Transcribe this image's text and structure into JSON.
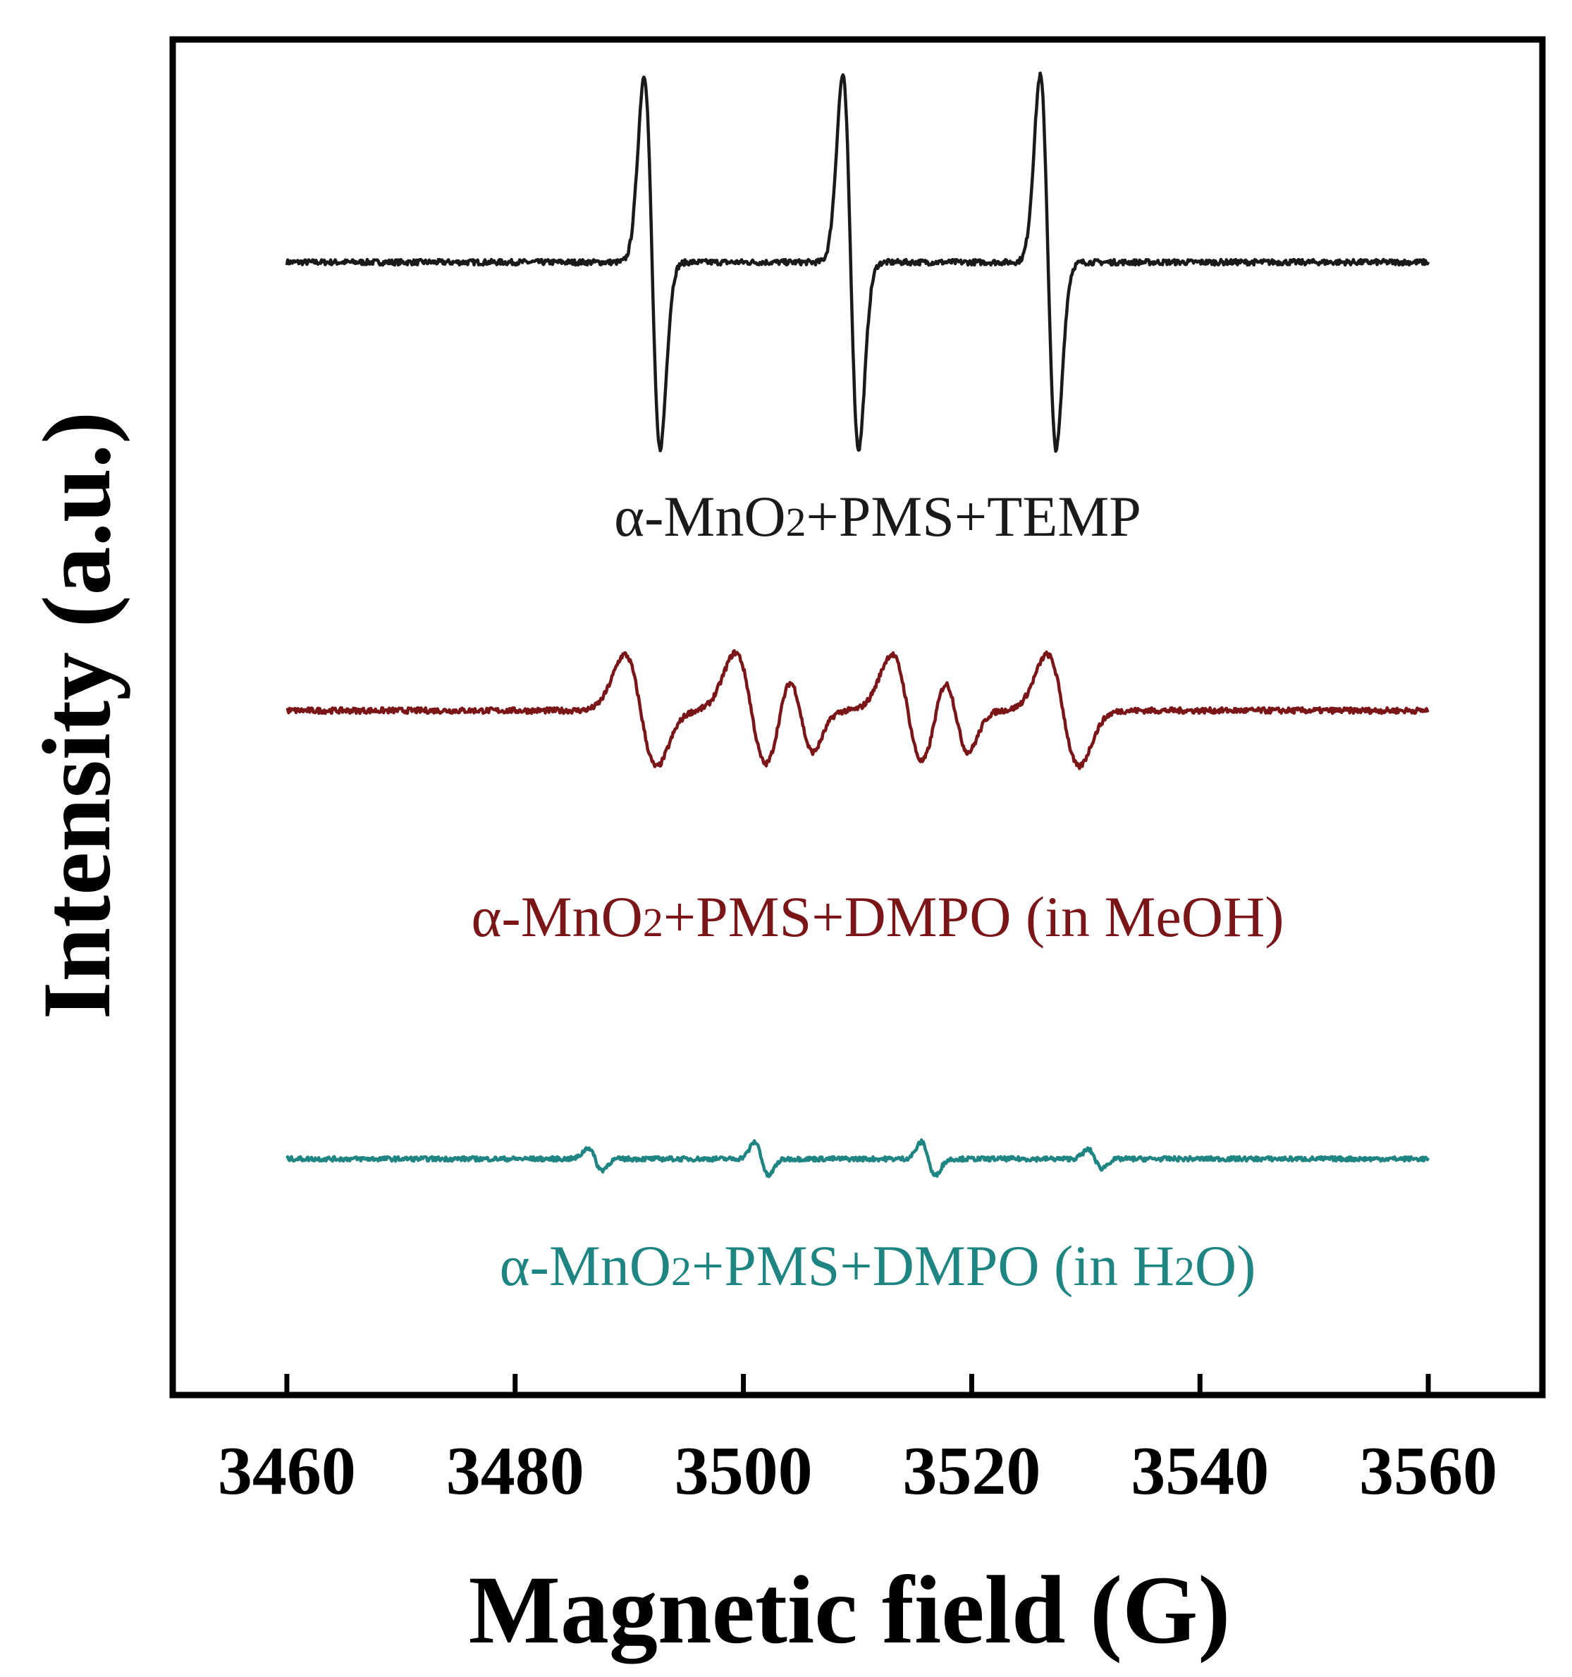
{
  "chart_data": {
    "type": "line",
    "title": "",
    "xlabel": "Magnetic field (G)",
    "ylabel": "Intensity (a.u.)",
    "xlim": [
      3450,
      3570
    ],
    "xticks": [
      3460,
      3480,
      3500,
      3520,
      3540,
      3560
    ],
    "grid": false,
    "y_ticks_shown": false,
    "series": [
      {
        "label_parts": [
          {
            "text": "α-MnO",
            "sub": false
          },
          {
            "text": "2",
            "sub": true
          },
          {
            "text": "+PMS+TEMP",
            "sub": false
          }
        ],
        "color": "#1a1a1a",
        "baseline": 0,
        "noise": 0.015,
        "x_range": [
          3460,
          3560
        ],
        "peaks": [
          {
            "center": 3492,
            "amplitude": 1.0,
            "width": 0.7
          },
          {
            "center": 3509.4,
            "amplitude": 1.0,
            "width": 0.7
          },
          {
            "center": 3526.7,
            "amplitude": 1.0,
            "width": 0.7
          }
        ]
      },
      {
        "label_parts": [
          {
            "text": "α-MnO",
            "sub": false
          },
          {
            "text": "2",
            "sub": true
          },
          {
            "text": "+PMS+DMPO (in MeOH)",
            "sub": false
          }
        ],
        "color": "#7a1518",
        "baseline": -2.4,
        "noise": 0.015,
        "x_range": [
          3460,
          3560
        ],
        "peaks": [
          {
            "center": 3491.0,
            "amplitude": 0.3,
            "width": 1.4
          },
          {
            "center": 3500.7,
            "amplitude": 0.31,
            "width": 1.4
          },
          {
            "center": 3505.0,
            "amplitude": 0.22,
            "width": 1.1
          },
          {
            "center": 3514.4,
            "amplitude": 0.3,
            "width": 1.4
          },
          {
            "center": 3518.6,
            "amplitude": 0.22,
            "width": 1.1
          },
          {
            "center": 3528.0,
            "amplitude": 0.3,
            "width": 1.4
          }
        ]
      },
      {
        "label_parts": [
          {
            "text": "α-MnO",
            "sub": false
          },
          {
            "text": "2",
            "sub": true
          },
          {
            "text": "+PMS+DMPO (in H",
            "sub": false
          },
          {
            "text": "2",
            "sub": true
          },
          {
            "text": "O)",
            "sub": false
          }
        ],
        "color": "#1e8583",
        "baseline": -4.8,
        "noise": 0.012,
        "x_range": [
          3460,
          3560
        ],
        "peaks": [
          {
            "center": 3487.0,
            "amplitude": 0.06,
            "width": 0.6
          },
          {
            "center": 3501.6,
            "amplitude": 0.09,
            "width": 0.6
          },
          {
            "center": 3516.2,
            "amplitude": 0.09,
            "width": 0.6
          },
          {
            "center": 3530.8,
            "amplitude": 0.05,
            "width": 0.6
          }
        ]
      }
    ]
  }
}
